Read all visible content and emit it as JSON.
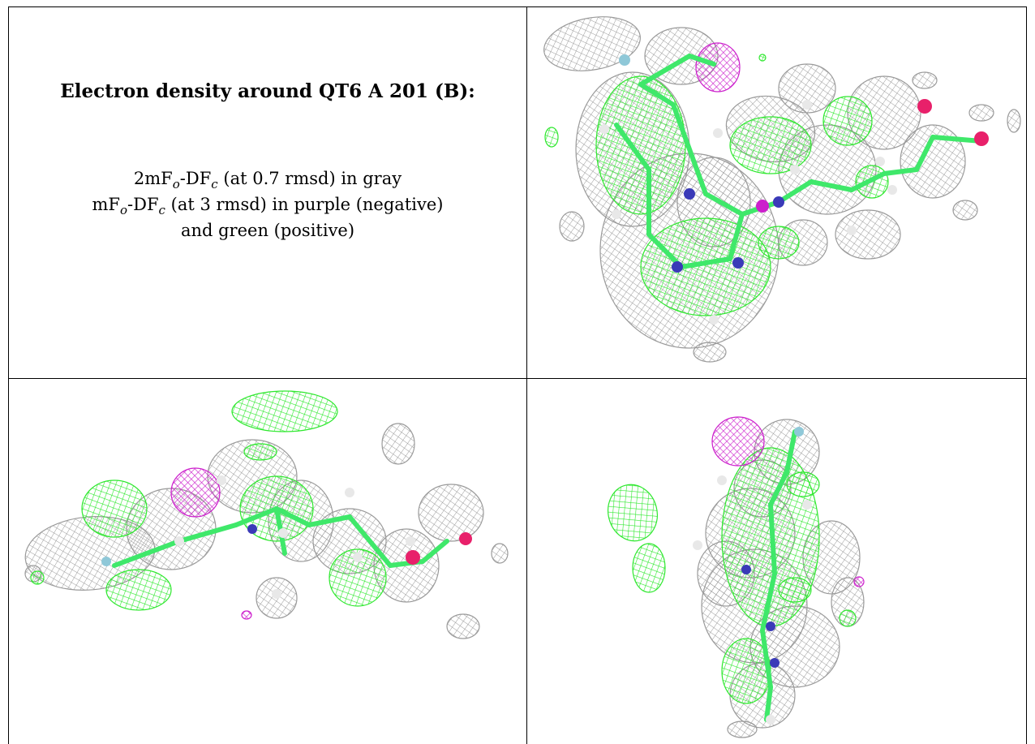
{
  "figure": {
    "title": "Electron density around QT6 A 201 (B):",
    "legend_line1_pre": "2mF",
    "legend_line1_sub1": "o",
    "legend_line1_mid": "-DF",
    "legend_line1_sub2": "c",
    "legend_line1_post": " (at 0.7 rmsd) in gray",
    "legend_line2_pre": "mF",
    "legend_line2_sub1": "o",
    "legend_line2_mid": "-DF",
    "legend_line2_sub2": "c",
    "legend_line2_post": " (at 3 rmsd) in purple (negative)",
    "legend_line3": "and green (positive)"
  },
  "colors": {
    "mesh_gray": "#9a9a9a",
    "positive_green": "#2ee82e",
    "negative_purple": "#cc1fcc",
    "carbon": "#3fe86a",
    "oxygen": "#e8206a",
    "nitrogen": "#3a3ab8",
    "hydrogen": "#e8e8e8",
    "fluorine": "#8fc8d8"
  },
  "panels": [
    "view-1",
    "view-2",
    "view-3"
  ]
}
